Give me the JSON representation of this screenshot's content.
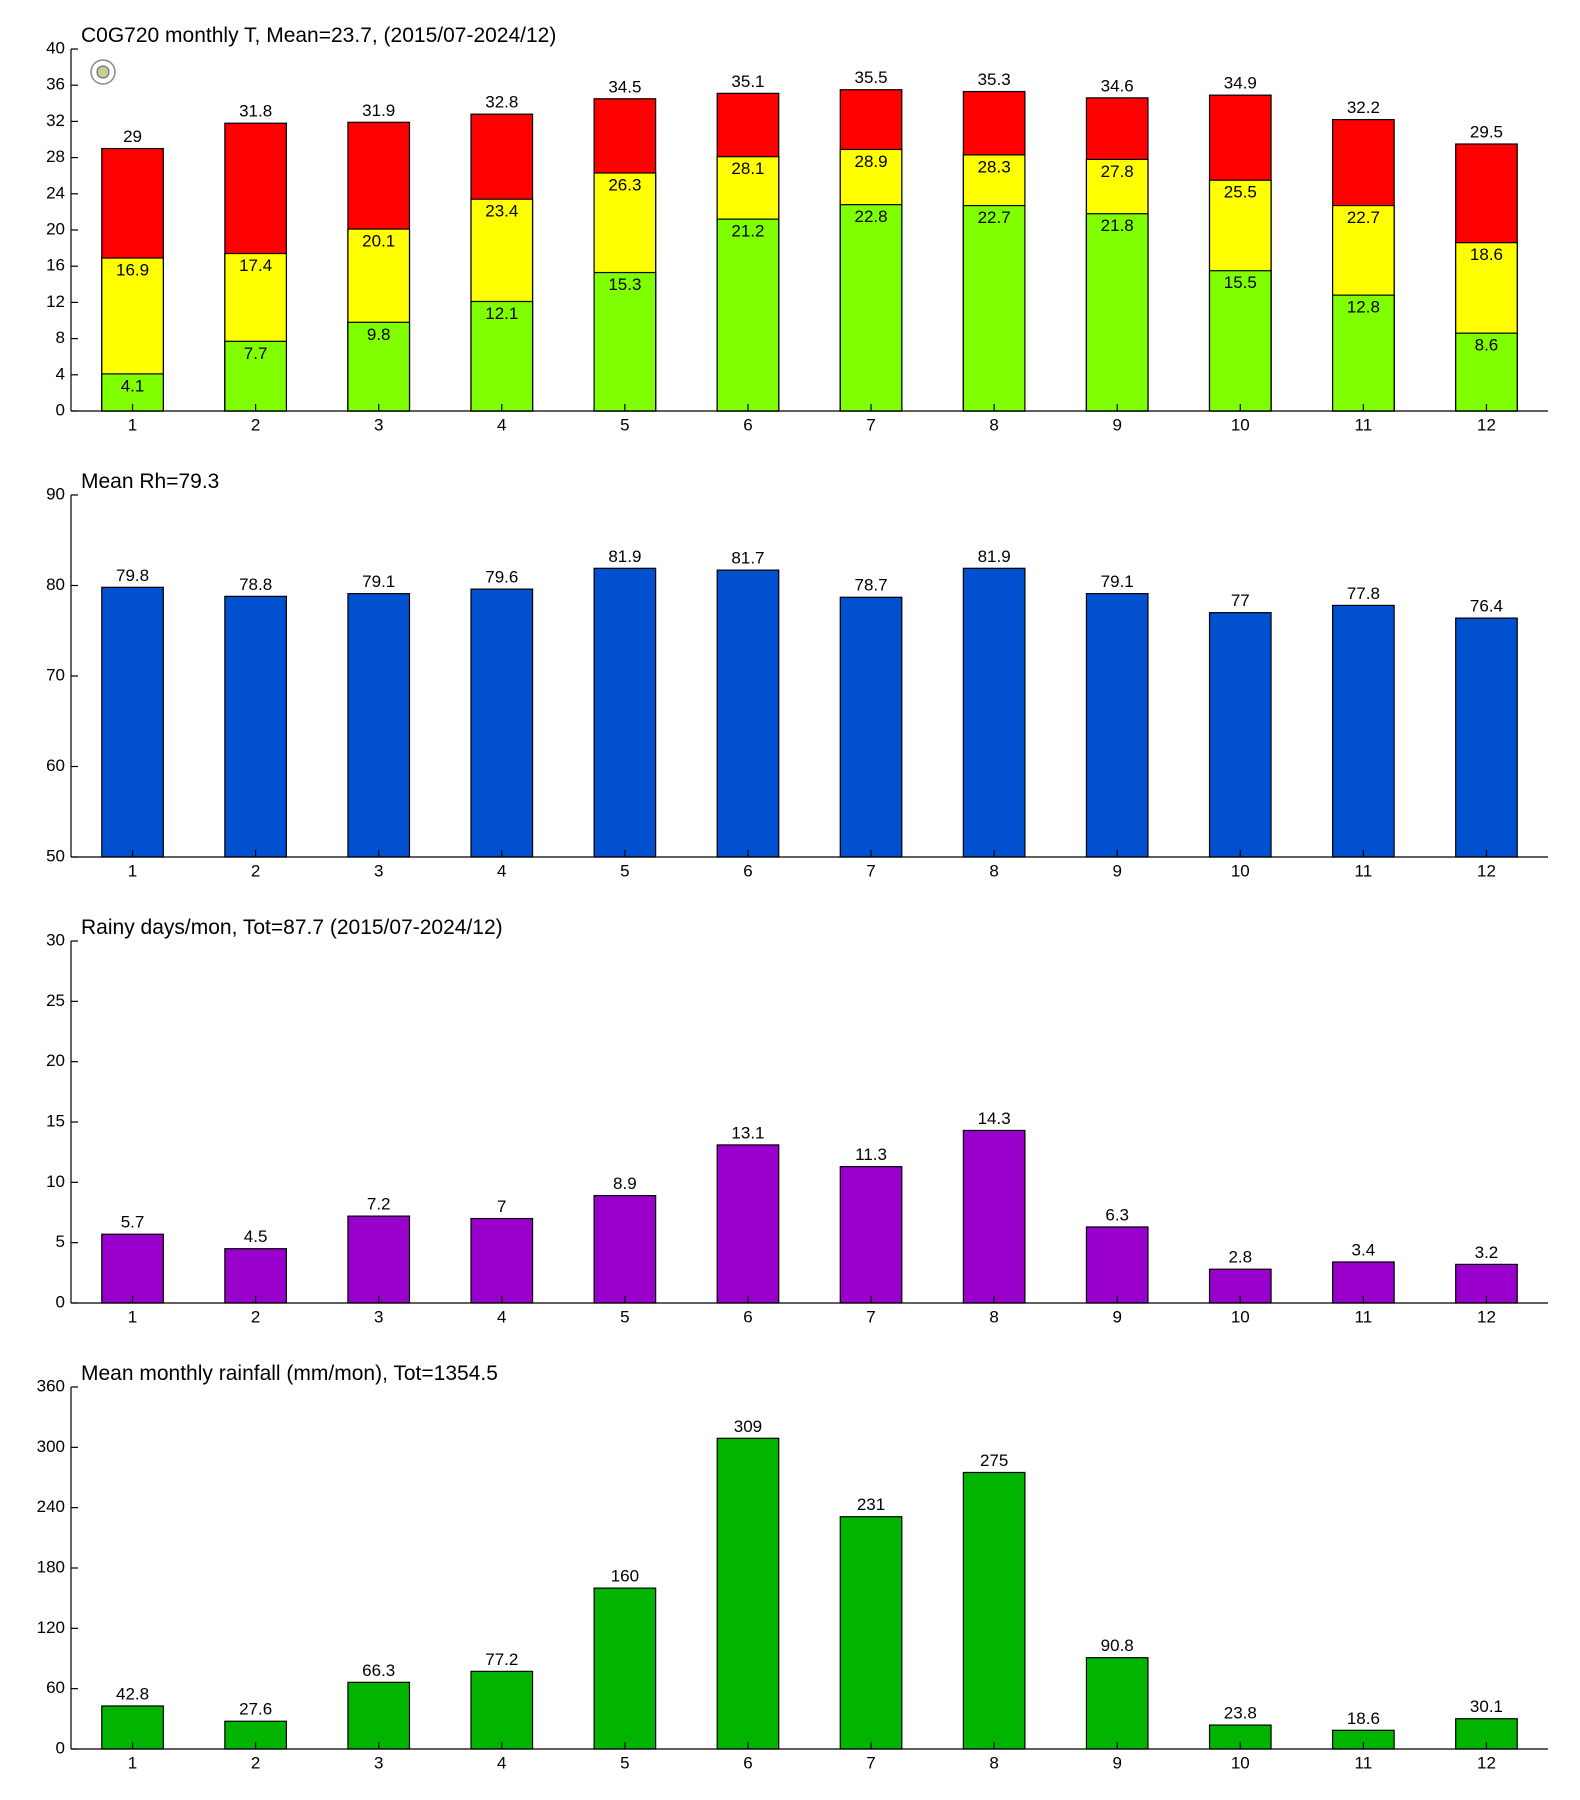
{
  "chart_data": [
    {
      "type": "bar",
      "title": "C0G720 monthly T, Mean=23.7, (2015/07-2024/12)",
      "x": [
        1,
        2,
        3,
        4,
        5,
        6,
        7,
        8,
        9,
        10,
        11,
        12
      ],
      "xlim": [
        0.5,
        12.5
      ],
      "xticks": [
        1,
        2,
        3,
        4,
        5,
        6,
        7,
        8,
        9,
        10,
        11,
        12
      ],
      "ylim": [
        0,
        40
      ],
      "yticks": [
        0,
        4,
        8,
        12,
        16,
        20,
        24,
        28,
        32,
        36,
        40
      ],
      "series": [
        {
          "color": "#ff0000",
          "values": [
            29,
            31.8,
            31.9,
            32.8,
            34.5,
            35.1,
            35.5,
            35.3,
            34.6,
            34.9,
            32.2,
            29.5
          ]
        },
        {
          "color": "#ffff00",
          "values": [
            16.9,
            17.4,
            20.1,
            23.4,
            26.3,
            28.1,
            28.9,
            28.3,
            27.8,
            25.5,
            22.7,
            18.6
          ]
        },
        {
          "color": "#80ff00",
          "values": [
            4.1,
            7.7,
            9.8,
            12.1,
            15.3,
            21.2,
            22.8,
            22.7,
            21.8,
            15.5,
            12.8,
            8.6
          ]
        }
      ]
    },
    {
      "type": "bar",
      "title": "Mean Rh=79.3",
      "x": [
        1,
        2,
        3,
        4,
        5,
        6,
        7,
        8,
        9,
        10,
        11,
        12
      ],
      "xlim": [
        0.5,
        12.5
      ],
      "xticks": [
        1,
        2,
        3,
        4,
        5,
        6,
        7,
        8,
        9,
        10,
        11,
        12
      ],
      "ylim": [
        50,
        90
      ],
      "yticks": [
        50,
        60,
        70,
        80,
        90
      ],
      "series": [
        {
          "color": "#0050d0",
          "values": [
            79.8,
            78.8,
            79.1,
            79.6,
            81.9,
            81.7,
            78.7,
            81.9,
            79.1,
            77,
            77.8,
            76.4
          ]
        }
      ]
    },
    {
      "type": "bar",
      "title": "Rainy days/mon, Tot=87.7 (2015/07-2024/12)",
      "x": [
        1,
        2,
        3,
        4,
        5,
        6,
        7,
        8,
        9,
        10,
        11,
        12
      ],
      "xlim": [
        0.5,
        12.5
      ],
      "xticks": [
        1,
        2,
        3,
        4,
        5,
        6,
        7,
        8,
        9,
        10,
        11,
        12
      ],
      "ylim": [
        0,
        30
      ],
      "yticks": [
        0,
        5,
        10,
        15,
        20,
        25,
        30
      ],
      "series": [
        {
          "color": "#9900cc",
          "values": [
            5.7,
            4.5,
            7.2,
            7,
            8.9,
            13.1,
            11.3,
            14.3,
            6.3,
            2.8,
            3.4,
            3.2
          ]
        }
      ]
    },
    {
      "type": "bar",
      "title": "Mean monthly rainfall (mm/mon), Tot=1354.5",
      "x": [
        1,
        2,
        3,
        4,
        5,
        6,
        7,
        8,
        9,
        10,
        11,
        12
      ],
      "xlim": [
        0.5,
        12.5
      ],
      "xticks": [
        1,
        2,
        3,
        4,
        5,
        6,
        7,
        8,
        9,
        10,
        11,
        12
      ],
      "ylim": [
        0,
        360
      ],
      "yticks": [
        0,
        60,
        120,
        180,
        240,
        300,
        360
      ],
      "series": [
        {
          "color": "#00b400",
          "values": [
            42.8,
            27.6,
            66.3,
            77.2,
            160,
            309,
            231,
            275,
            90.8,
            23.8,
            18.6,
            30.1
          ]
        }
      ]
    }
  ]
}
